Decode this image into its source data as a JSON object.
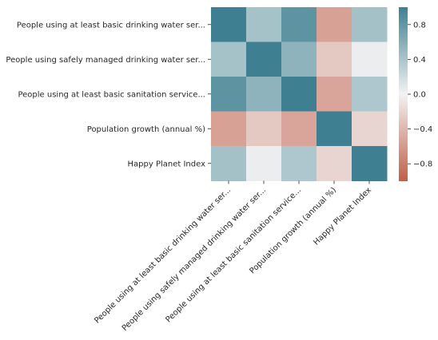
{
  "chart_data": {
    "type": "heatmap",
    "title": "",
    "row_labels": [
      "People using at least basic drinking water ser...",
      "People using safely managed drinking water ser...",
      "People using at least basic sanitation service...",
      "Population growth (annual %)",
      "Happy Planet Index"
    ],
    "col_labels": [
      "People using at least basic drinking water ser...",
      "People using safely managed drinking water ser...",
      "People using at least basic sanitation service...",
      "Population growth (annual %)",
      "Happy Planet Index"
    ],
    "values": [
      [
        1.0,
        0.42,
        0.82,
        -0.55,
        0.43
      ],
      [
        0.42,
        1.0,
        0.55,
        -0.28,
        0.04
      ],
      [
        0.82,
        0.55,
        1.0,
        -0.52,
        0.38
      ],
      [
        -0.55,
        -0.28,
        -0.52,
        1.0,
        -0.2
      ],
      [
        0.43,
        0.04,
        0.38,
        -0.2,
        1.0
      ]
    ],
    "colorbar": {
      "vmin": -1.0,
      "vmax": 1.0,
      "ticks": [
        0.8,
        0.4,
        0.0,
        -0.4,
        -0.8
      ],
      "tick_labels": [
        "0.8",
        "0.4",
        "0.0",
        "−0.4",
        "−0.8"
      ]
    },
    "colormap": {
      "negative": "#c15e48",
      "center": "#f2f2f2",
      "positive": "#3e7f91"
    }
  }
}
